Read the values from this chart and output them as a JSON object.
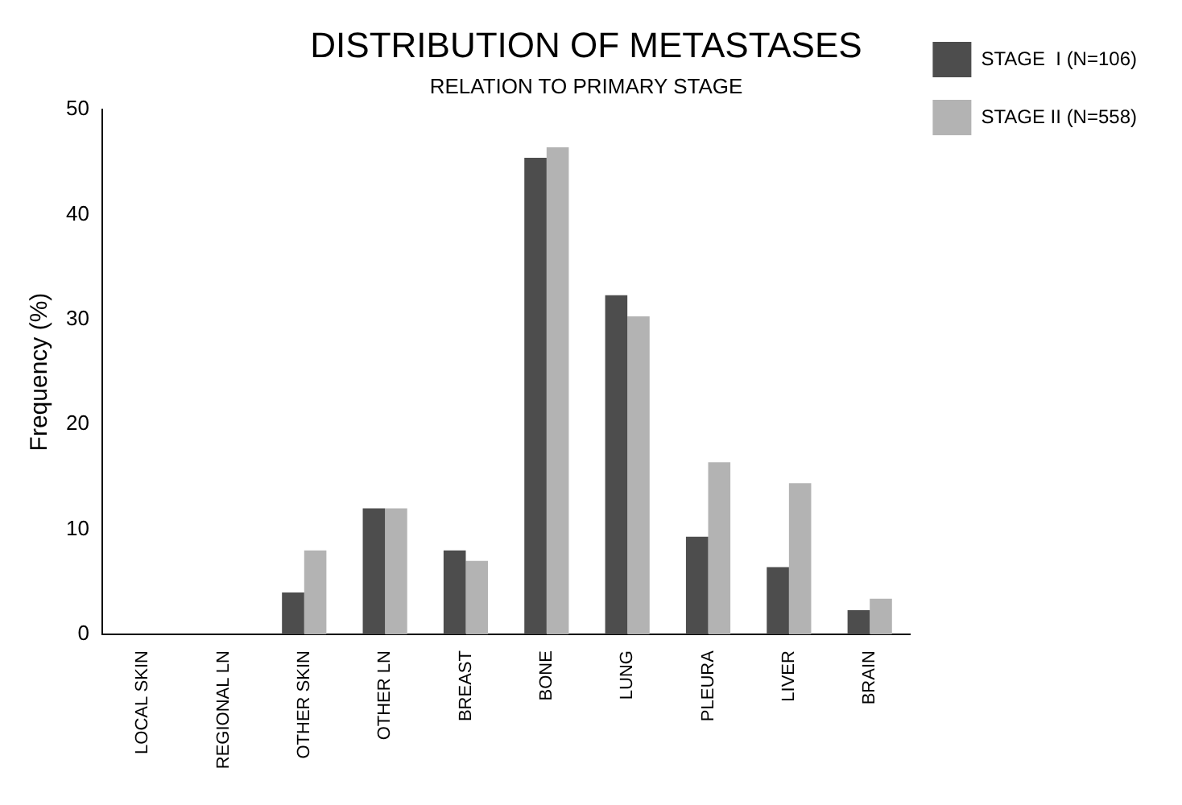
{
  "chart_data": {
    "type": "bar",
    "title": "DISTRIBUTION OF METASTASES",
    "subtitle": "RELATION TO PRIMARY STAGE",
    "ylabel": "Frequency (%)",
    "categories": [
      "LOCAL SKIN",
      "REGIONAL LN",
      "OTHER SKIN",
      "OTHER LN",
      "BREAST",
      "BONE",
      "LUNG",
      "PLEURA",
      "LIVER",
      "BRAIN"
    ],
    "series": [
      {
        "name": "STAGE  I (N=106)",
        "color": "#4d4d4d",
        "values": [
          0,
          0,
          4,
          12,
          8,
          45.4,
          32.3,
          9.3,
          6.4,
          2.3
        ]
      },
      {
        "name": "STAGE II (N=558)",
        "color": "#b3b3b3",
        "values": [
          0,
          0,
          8,
          12,
          7,
          46.4,
          30.3,
          16.4,
          14.4,
          3.4
        ]
      }
    ],
    "ylim": [
      0,
      50
    ],
    "yticks": [
      0,
      10,
      20,
      30,
      40,
      50
    ],
    "grid": false,
    "legend": "top right"
  }
}
